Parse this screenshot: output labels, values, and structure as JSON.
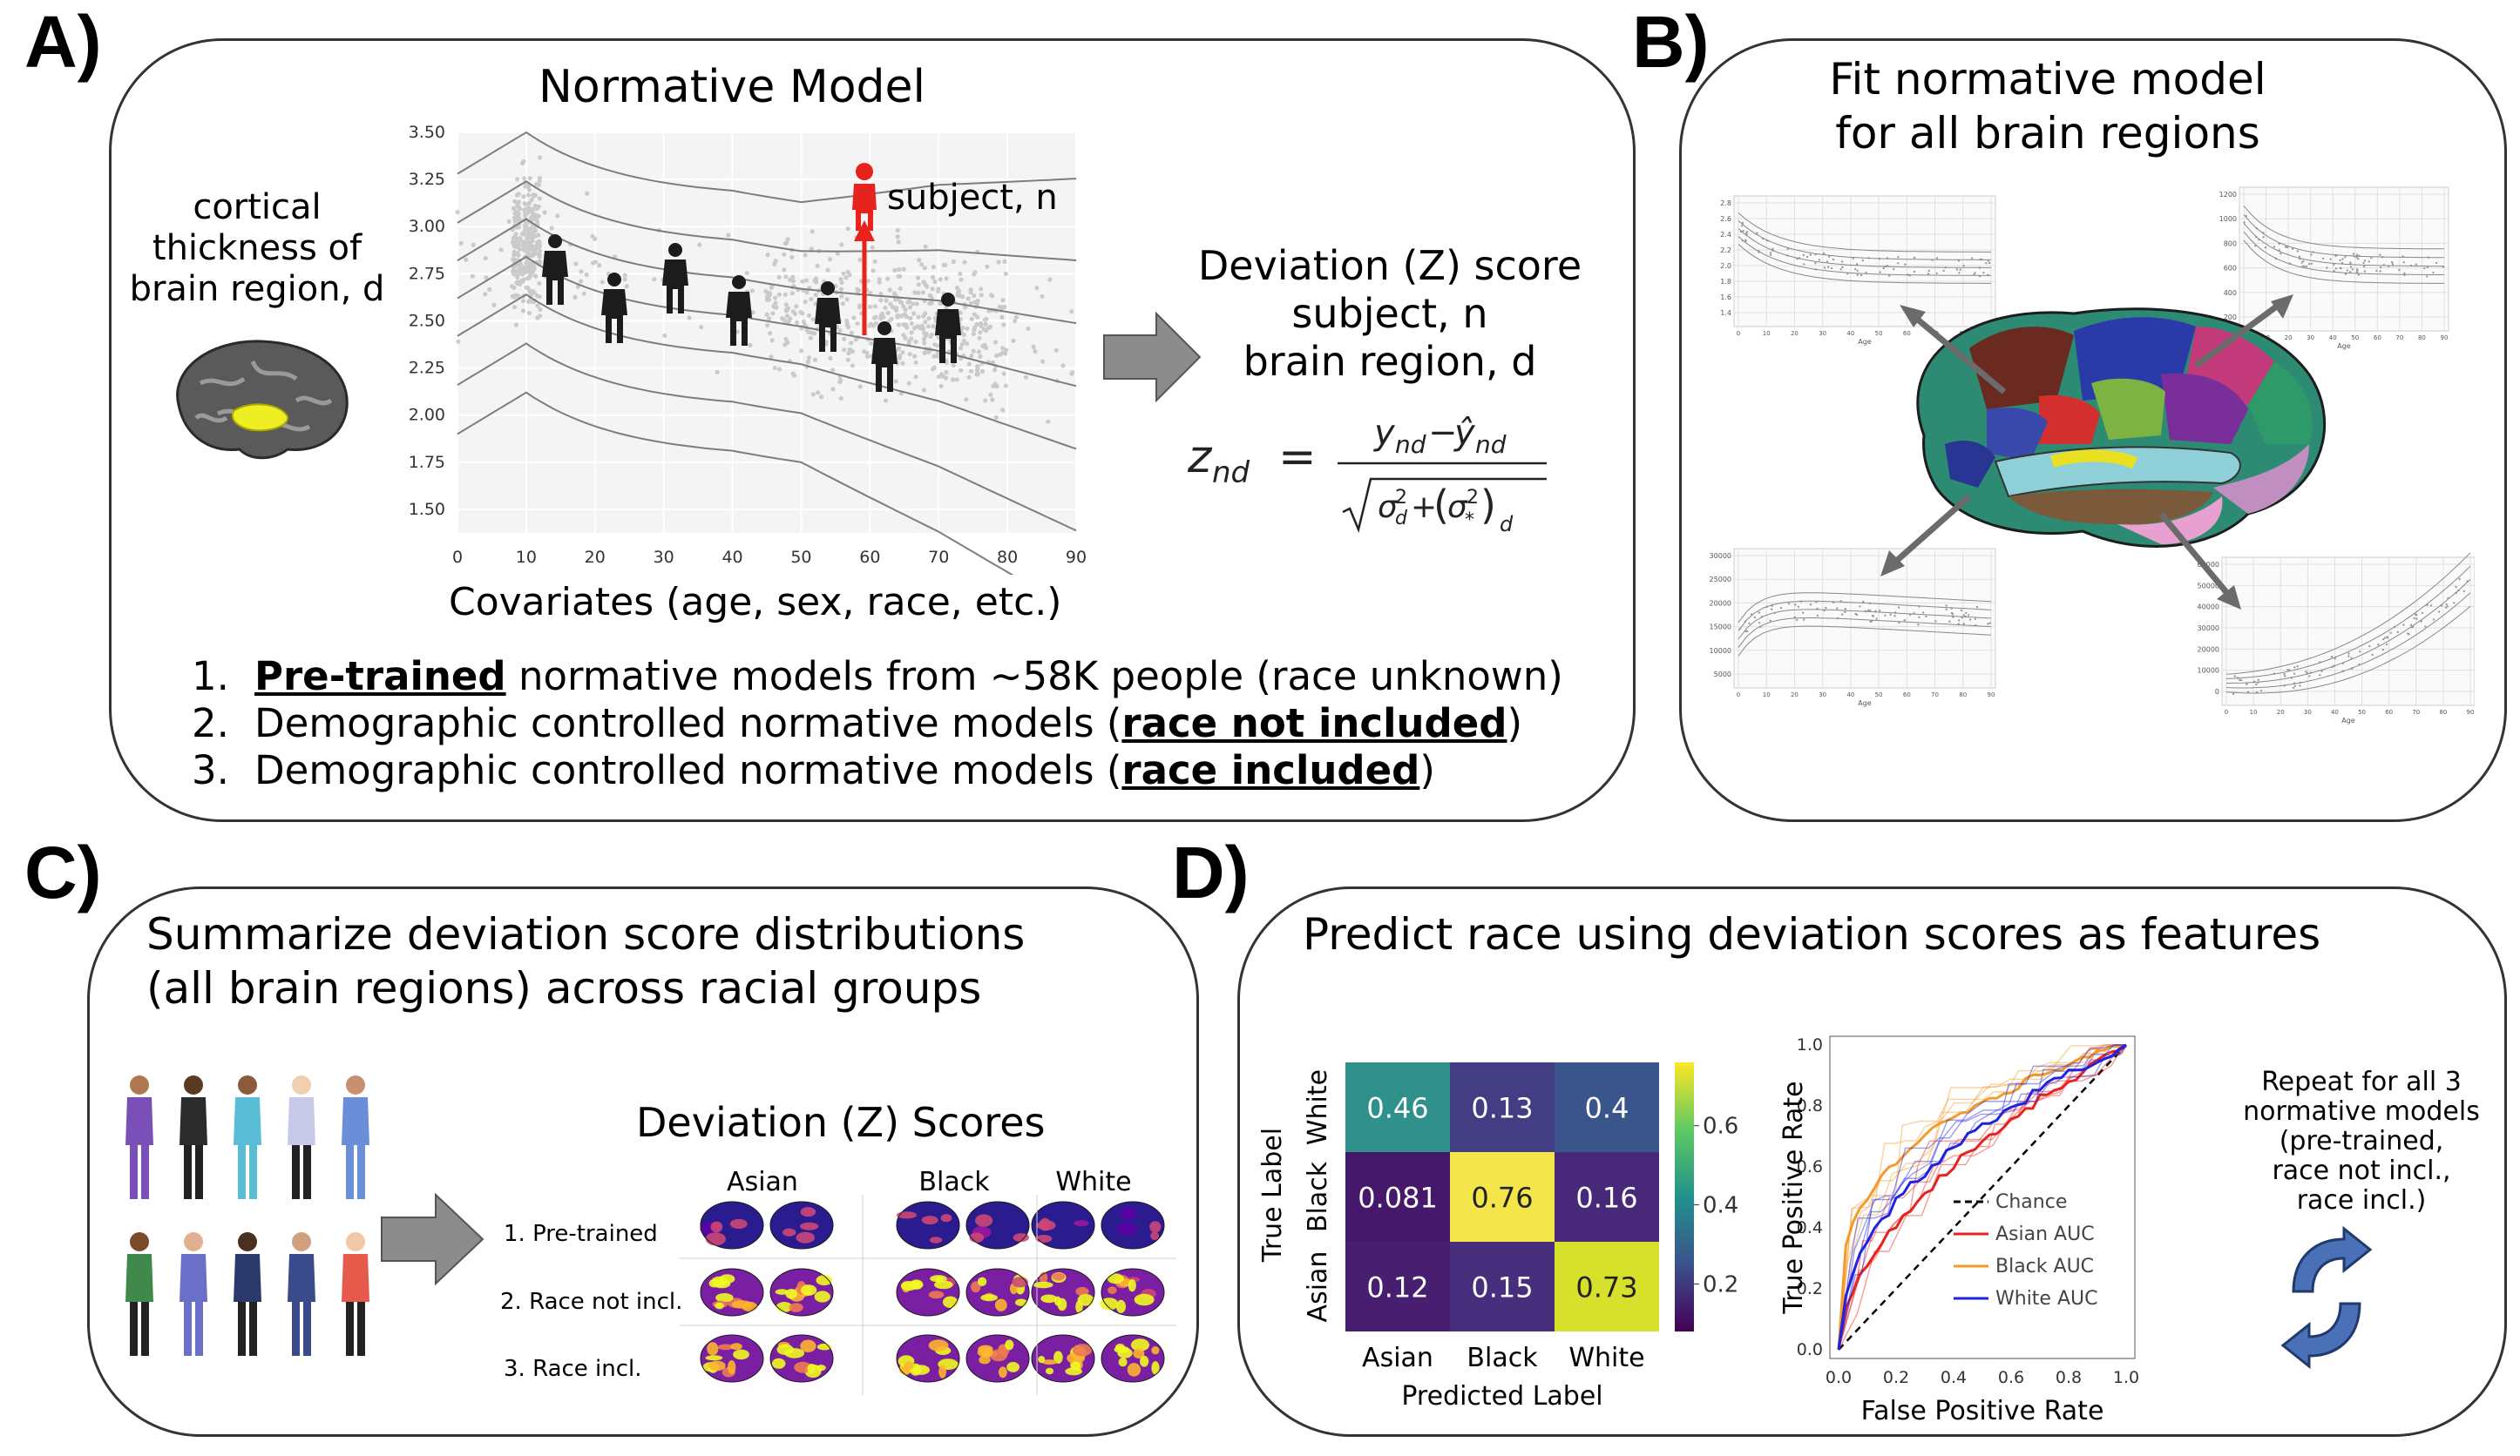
{
  "panels": {
    "a": {
      "label": "A)",
      "title": "Normative Model",
      "ylabel": [
        "cortical",
        "thickness of",
        "brain region, d"
      ],
      "xlabel": "Covariates (age, sex, race, etc.)",
      "yticks": [
        "3.50",
        "3.25",
        "3.00",
        "2.75",
        "2.50",
        "2.25",
        "2.00",
        "1.75",
        "1.50"
      ],
      "xticks": [
        "0",
        "10",
        "20",
        "30",
        "40",
        "50",
        "60",
        "70",
        "80",
        "90"
      ],
      "subject_label": "subject, n",
      "deviation": [
        "Deviation (Z) score",
        "subject, n",
        "brain region, d"
      ],
      "list": [
        {
          "num": "1.",
          "bold": "Pre-trained",
          "rest": " normative models from ~58K people (race unknown)",
          "bold_first": true
        },
        {
          "num": "2.",
          "pre": "Demographic controlled normative models (",
          "bold": "race not included",
          "post": ")"
        },
        {
          "num": "3.",
          "pre": "Demographic controlled normative models (",
          "bold": "race included",
          "post": ")"
        }
      ]
    },
    "b": {
      "label": "B)",
      "title": [
        "Fit normative model",
        "for all brain regions"
      ],
      "mini_age": "Age",
      "mini_plots": [
        {
          "yticks": [
            "2.8",
            "2.6",
            "2.4",
            "2.2",
            "2.0",
            "1.8",
            "1.6",
            "1.4"
          ],
          "xticks": [
            "0",
            "10",
            "20",
            "30",
            "40",
            "50",
            "60",
            "70",
            "80",
            "90"
          ]
        },
        {
          "yticks": [
            "1200",
            "1000",
            "800",
            "600",
            "400",
            "200"
          ],
          "xticks": [
            "0",
            "10",
            "20",
            "30",
            "40",
            "50",
            "60",
            "70",
            "80",
            "90"
          ]
        },
        {
          "yticks": [
            "30000",
            "25000",
            "20000",
            "15000",
            "10000",
            "5000"
          ],
          "xticks": [
            "0",
            "10",
            "20",
            "30",
            "40",
            "50",
            "60",
            "70",
            "80",
            "90"
          ]
        },
        {
          "yticks": [
            "60000",
            "50000",
            "40000",
            "30000",
            "20000",
            "10000",
            "0"
          ],
          "xticks": [
            "0",
            "10",
            "20",
            "30",
            "40",
            "50",
            "60",
            "70",
            "80",
            "90"
          ]
        }
      ]
    },
    "c": {
      "label": "C)",
      "title": [
        "Summarize deviation score distributions",
        "(all brain regions) across racial groups"
      ],
      "scores_title": "Deviation (Z) Scores",
      "groups": [
        "Asian",
        "Black",
        "White"
      ],
      "rows": [
        "1. Pre-trained",
        "2. Race not incl.",
        "3. Race incl."
      ]
    },
    "d": {
      "label": "D)",
      "title": "Predict race using deviation scores as features",
      "cm": {
        "rows": [
          "White",
          "Black",
          "Asian"
        ],
        "cols": [
          "Asian",
          "Black",
          "White"
        ],
        "values": [
          [
            "0.46",
            "0.13",
            "0.4"
          ],
          [
            "0.081",
            "0.76",
            "0.16"
          ],
          [
            "0.12",
            "0.15",
            "0.73"
          ]
        ],
        "colors": [
          [
            "#30908c",
            "#433e84",
            "#3a548c"
          ],
          [
            "#46186c",
            "#f3e54a",
            "#482878"
          ],
          [
            "#471e70",
            "#472f7d",
            "#d7e12c"
          ]
        ],
        "ylabel": "True Label",
        "xlabel": "Predicted Label",
        "cbar_ticks": [
          "0.6",
          "0.4",
          "0.2"
        ]
      },
      "roc": {
        "xlabel": "False Positive Rate",
        "ylabel": "True Positive Rate",
        "ticks": [
          "0.0",
          "0.2",
          "0.4",
          "0.6",
          "0.8",
          "1.0"
        ],
        "legend": [
          {
            "label": "Chance",
            "color": "#000000"
          },
          {
            "label": "Asian AUC",
            "color": "#e8221c"
          },
          {
            "label": "Black AUC",
            "color": "#f39a2a"
          },
          {
            "label": "White AUC",
            "color": "#1f22e0"
          }
        ]
      },
      "repeat": [
        "Repeat for all 3",
        "normative models",
        "(pre-trained,",
        "race not incl.,",
        "race incl.)"
      ]
    }
  }
}
